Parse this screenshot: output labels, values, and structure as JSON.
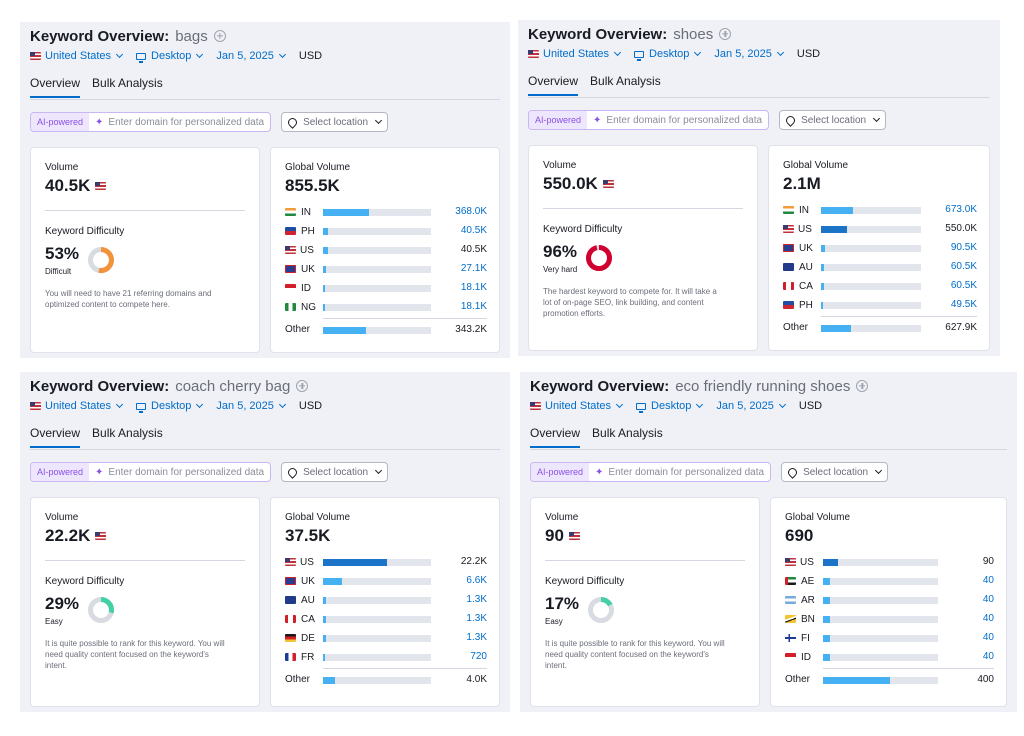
{
  "colors": {
    "accent": "#006dca",
    "bar": "#45b0f2",
    "bar_dark": "#1c74c9",
    "ai": "#8a51e4",
    "difficult": "#f2933c",
    "very_hard": "#d1002f",
    "easy": "#43d0a4"
  },
  "panels": [
    {
      "title_label": "Keyword Overview:",
      "keyword": "bags",
      "filters": {
        "country": "United States",
        "device": "Desktop",
        "date": "Jan 5, 2025",
        "currency": "USD"
      },
      "tabs": [
        "Overview",
        "Bulk Analysis"
      ],
      "ai": {
        "tag": "AI-powered",
        "placeholder": "Enter domain for personalized data",
        "location": "Select location"
      },
      "volume": {
        "label": "Volume",
        "value": "40.5K",
        "flag": "us-flag-icon"
      },
      "kd": {
        "label": "Keyword Difficulty",
        "value": "53%",
        "level": "Difficult",
        "percent": 53,
        "color": "#f2933c",
        "hint": [
          "You will need to have 21 referring domains and",
          "optimized content to compete here."
        ]
      },
      "global": {
        "label": "Global Volume",
        "value": "855.5K",
        "rows": [
          {
            "code": "IN",
            "flag": "in-flag-icon",
            "value": "368.0K",
            "share": 0.43,
            "link": true
          },
          {
            "code": "PH",
            "flag": "ph-flag-icon",
            "value": "40.5K",
            "share": 0.05,
            "link": true
          },
          {
            "code": "US",
            "flag": "us-flag-icon",
            "value": "40.5K",
            "share": 0.05,
            "link": false
          },
          {
            "code": "UK",
            "flag": "uk-flag-icon",
            "value": "27.1K",
            "share": 0.03,
            "link": true
          },
          {
            "code": "ID",
            "flag": "id-flag-icon",
            "value": "18.1K",
            "share": 0.02,
            "link": true
          },
          {
            "code": "NG",
            "flag": "ng-flag-icon",
            "value": "18.1K",
            "share": 0.02,
            "link": true
          }
        ],
        "other": {
          "label": "Other",
          "value": "343.2K",
          "share": 0.4
        }
      }
    },
    {
      "title_label": "Keyword Overview:",
      "keyword": "shoes",
      "filters": {
        "country": "United States",
        "device": "Desktop",
        "date": "Jan 5, 2025",
        "currency": "USD"
      },
      "tabs": [
        "Overview",
        "Bulk Analysis"
      ],
      "ai": {
        "tag": "AI-powered",
        "placeholder": "Enter domain for personalized data",
        "location": "Select location"
      },
      "volume": {
        "label": "Volume",
        "value": "550.0K",
        "flag": "us-flag-icon"
      },
      "kd": {
        "label": "Keyword Difficulty",
        "value": "96%",
        "level": "Very hard",
        "percent": 96,
        "color": "#d1002f",
        "hint": [
          "The hardest keyword to compete for. It will take a",
          "lot of on-page SEO, link building, and content",
          "promotion efforts."
        ]
      },
      "global": {
        "label": "Global Volume",
        "value": "2.1M",
        "rows": [
          {
            "code": "IN",
            "flag": "in-flag-icon",
            "value": "673.0K",
            "share": 0.32,
            "link": true
          },
          {
            "code": "US",
            "flag": "us-flag-icon",
            "value": "550.0K",
            "share": 0.26,
            "link": false,
            "dark": true
          },
          {
            "code": "UK",
            "flag": "uk-flag-icon",
            "value": "90.5K",
            "share": 0.04,
            "link": true
          },
          {
            "code": "AU",
            "flag": "au-flag-icon",
            "value": "60.5K",
            "share": 0.03,
            "link": true
          },
          {
            "code": "CA",
            "flag": "ca-flag-icon",
            "value": "60.5K",
            "share": 0.03,
            "link": true
          },
          {
            "code": "PH",
            "flag": "ph-flag-icon",
            "value": "49.5K",
            "share": 0.02,
            "link": true
          }
        ],
        "other": {
          "label": "Other",
          "value": "627.9K",
          "share": 0.3
        }
      }
    },
    {
      "title_label": "Keyword Overview:",
      "keyword": "coach cherry bag",
      "filters": {
        "country": "United States",
        "device": "Desktop",
        "date": "Jan 5, 2025",
        "currency": "USD"
      },
      "tabs": [
        "Overview",
        "Bulk Analysis"
      ],
      "ai": {
        "tag": "AI-powered",
        "placeholder": "Enter domain for personalized data",
        "location": "Select location"
      },
      "volume": {
        "label": "Volume",
        "value": "22.2K",
        "flag": "us-flag-icon"
      },
      "kd": {
        "label": "Keyword Difficulty",
        "value": "29%",
        "level": "Easy",
        "percent": 29,
        "color": "#43d0a4",
        "hint": [
          "It is quite possible to rank for this keyword. You will",
          "need quality content focused on the keyword's",
          "intent."
        ]
      },
      "global": {
        "label": "Global Volume",
        "value": "37.5K",
        "rows": [
          {
            "code": "US",
            "flag": "us-flag-icon",
            "value": "22.2K",
            "share": 0.59,
            "link": false,
            "dark": true
          },
          {
            "code": "UK",
            "flag": "uk-flag-icon",
            "value": "6.6K",
            "share": 0.18,
            "link": true
          },
          {
            "code": "AU",
            "flag": "au-flag-icon",
            "value": "1.3K",
            "share": 0.03,
            "link": true
          },
          {
            "code": "CA",
            "flag": "ca-flag-icon",
            "value": "1.3K",
            "share": 0.03,
            "link": true
          },
          {
            "code": "DE",
            "flag": "de-flag-icon",
            "value": "1.3K",
            "share": 0.03,
            "link": true
          },
          {
            "code": "FR",
            "flag": "fr-flag-icon",
            "value": "720",
            "share": 0.02,
            "link": true
          }
        ],
        "other": {
          "label": "Other",
          "value": "4.0K",
          "share": 0.11
        }
      }
    },
    {
      "title_label": "Keyword Overview:",
      "keyword": "eco friendly running shoes",
      "filters": {
        "country": "United States",
        "device": "Desktop",
        "date": "Jan 5, 2025",
        "currency": "USD"
      },
      "tabs": [
        "Overview",
        "Bulk Analysis"
      ],
      "ai": {
        "tag": "AI-powered",
        "placeholder": "Enter domain for personalized data",
        "location": "Select location"
      },
      "volume": {
        "label": "Volume",
        "value": "90",
        "flag": "us-flag-icon"
      },
      "kd": {
        "label": "Keyword Difficulty",
        "value": "17%",
        "level": "Easy",
        "percent": 17,
        "color": "#43d0a4",
        "hint": [
          "It is quite possible to rank for this keyword. You will",
          "need quality content focused on the keyword's",
          "intent."
        ]
      },
      "global": {
        "label": "Global Volume",
        "value": "690",
        "rows": [
          {
            "code": "US",
            "flag": "us-flag-icon",
            "value": "90",
            "share": 0.13,
            "link": false,
            "dark": true
          },
          {
            "code": "AE",
            "flag": "ae-flag-icon",
            "value": "40",
            "share": 0.06,
            "link": true
          },
          {
            "code": "AR",
            "flag": "ar-flag-icon",
            "value": "40",
            "share": 0.06,
            "link": true
          },
          {
            "code": "BN",
            "flag": "bn-flag-icon",
            "value": "40",
            "share": 0.06,
            "link": true
          },
          {
            "code": "FI",
            "flag": "fi-flag-icon",
            "value": "40",
            "share": 0.06,
            "link": true
          },
          {
            "code": "ID",
            "flag": "id-flag-icon",
            "value": "40",
            "share": 0.06,
            "link": true
          }
        ],
        "other": {
          "label": "Other",
          "value": "400",
          "share": 0.58
        }
      }
    }
  ]
}
